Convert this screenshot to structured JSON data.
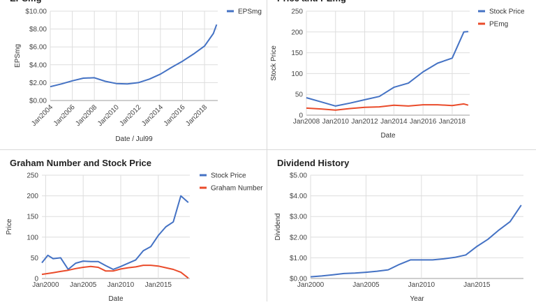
{
  "charts": [
    {
      "id": "epsmg",
      "title": "EPSmg",
      "type": "line",
      "xlabel": "Date / Jul99",
      "ylabel": "EPSmg",
      "x_ticks": [
        "Jan2004",
        "Jan2006",
        "Jan2008",
        "Jan2010",
        "Jan2012",
        "Jan2014",
        "Jan2016",
        "Jan2018"
      ],
      "y_ticks": [
        "$0.00",
        "$2.00",
        "$4.00",
        "$6.00",
        "$8.00",
        "$10.00"
      ],
      "xlim": [
        2004,
        2019.2
      ],
      "ylim": [
        0,
        10
      ],
      "legend_position": "top-right",
      "series": [
        {
          "name": "EPSmg",
          "color": "#4472c4",
          "x": [
            2004,
            2005,
            2006,
            2007,
            2008,
            2009,
            2010,
            2011,
            2012,
            2013,
            2014,
            2015,
            2016,
            2017,
            2018,
            2018.8,
            2019.1
          ],
          "y": [
            1.55,
            1.85,
            2.2,
            2.5,
            2.55,
            2.15,
            1.9,
            1.85,
            2.0,
            2.4,
            2.95,
            3.7,
            4.4,
            5.2,
            6.1,
            7.5,
            8.5
          ]
        }
      ]
    },
    {
      "id": "price-pemg",
      "title": "Price and PEmg",
      "type": "line",
      "xlabel": "Date",
      "ylabel": "Stock Price",
      "x_ticks": [
        "Jan2008",
        "Jan2010",
        "Jan2012",
        "Jan2014",
        "Jan2016",
        "Jan2018"
      ],
      "y_ticks": [
        "0",
        "50",
        "100",
        "150",
        "200",
        "250"
      ],
      "xlim": [
        2008,
        2019.2
      ],
      "ylim": [
        0,
        250
      ],
      "legend_position": "top-right",
      "series": [
        {
          "name": "Stock Price",
          "color": "#4472c4",
          "x": [
            2008,
            2009,
            2010,
            2011,
            2012,
            2013,
            2014,
            2015,
            2016,
            2017,
            2018,
            2018.8,
            2019.1
          ],
          "y": [
            42,
            32,
            22,
            29,
            37,
            45,
            67,
            77,
            104,
            125,
            137,
            200,
            201
          ]
        },
        {
          "name": "PEmg",
          "color": "#ea4b2a",
          "x": [
            2008,
            2009,
            2010,
            2011,
            2012,
            2013,
            2014,
            2015,
            2016,
            2017,
            2018,
            2018.8,
            2019.1
          ],
          "y": [
            17,
            15,
            12,
            16,
            19,
            20,
            24,
            22,
            25,
            25,
            23,
            27,
            24
          ]
        }
      ]
    },
    {
      "id": "graham",
      "title": "Graham Number and Stock Price",
      "type": "line",
      "xlabel": "Date",
      "ylabel": "Price",
      "x_ticks": [
        "Jan2000",
        "Jan2005",
        "Jan2010",
        "Jan2015"
      ],
      "y_ticks": [
        "0",
        "50",
        "100",
        "150",
        "200",
        "250"
      ],
      "xlim": [
        1999.5,
        2019.2
      ],
      "ylim": [
        0,
        250
      ],
      "legend_position": "top-right",
      "series": [
        {
          "name": "Stock Price",
          "color": "#4472c4",
          "x": [
            1999.5,
            2000.3,
            2001,
            2002,
            2003,
            2004,
            2005,
            2006,
            2007,
            2008,
            2009,
            2010,
            2011,
            2012,
            2013,
            2014,
            2015,
            2016,
            2017,
            2018,
            2019
          ],
          "y": [
            38,
            56,
            48,
            50,
            22,
            37,
            42,
            41,
            41,
            31,
            22,
            29,
            37,
            45,
            67,
            77,
            104,
            125,
            137,
            200,
            184
          ]
        },
        {
          "name": "Graham Number",
          "color": "#ea4b2a",
          "x": [
            1999.5,
            2001,
            2002,
            2003,
            2004,
            2005,
            2006,
            2007,
            2008,
            2009,
            2010,
            2011,
            2012,
            2013,
            2014,
            2015,
            2016,
            2017,
            2018,
            2019
          ],
          "y": [
            10,
            14,
            17,
            20,
            24,
            27,
            29,
            27,
            18,
            18,
            23,
            26,
            28,
            32,
            32,
            30,
            26,
            22,
            15,
            1
          ]
        }
      ]
    },
    {
      "id": "dividend",
      "title": "Dividend History",
      "type": "line",
      "xlabel": "Year",
      "ylabel": "Dividend",
      "x_ticks": [
        "Jan2000",
        "Jan2005",
        "Jan2010",
        "Jan2015"
      ],
      "y_ticks": [
        "$0.00",
        "$1.00",
        "$2.00",
        "$3.00",
        "$4.00",
        "$5.00"
      ],
      "xlim": [
        2000,
        2019.2
      ],
      "ylim": [
        0,
        5
      ],
      "legend_position": "none",
      "series": [
        {
          "name": "",
          "color": "#4472c4",
          "x": [
            2000,
            2001,
            2002,
            2003,
            2004,
            2005,
            2006,
            2007,
            2008,
            2009,
            2010,
            2011,
            2012,
            2013,
            2014,
            2015,
            2016,
            2017,
            2018,
            2019
          ],
          "y": [
            0.08,
            0.12,
            0.18,
            0.24,
            0.26,
            0.3,
            0.35,
            0.42,
            0.68,
            0.9,
            0.9,
            0.9,
            0.95,
            1.02,
            1.14,
            1.55,
            1.9,
            2.35,
            2.75,
            3.55
          ]
        }
      ]
    }
  ],
  "colors": {
    "gridline": "#dddddd",
    "axis": "#9e9e9e"
  }
}
